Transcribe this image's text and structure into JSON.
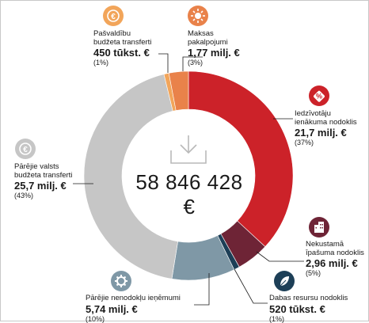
{
  "total": "58 846 428 €",
  "colors": {
    "iedzivotaju": "#cc2229",
    "nekustama": "#6e2436",
    "dabas": "#1d3f57",
    "parejie_nenodoklu": "#7f98a6",
    "parejie_valsts": "#c6c6c6",
    "pasvaldibu": "#f2a55a",
    "maksas": "#e9824a"
  },
  "chart_data": {
    "type": "pie",
    "total_value": "58 846 428 €",
    "slices": [
      {
        "key": "iedzivotaju",
        "name": "Iedzīvotāju ienākuma nodoklis",
        "value_text": "21,7 milj. €",
        "value": 21700000,
        "percent": 37,
        "percent_text": "(37%)",
        "color": "#cc2229",
        "icon": "percent-tag-icon"
      },
      {
        "key": "nekustama",
        "name": "Nekustamā īpašuma nodoklis",
        "value_text": "2,96 milj. €",
        "value": 2960000,
        "percent": 5,
        "percent_text": "(5%)",
        "color": "#6e2436",
        "icon": "buildings-icon"
      },
      {
        "key": "dabas",
        "name": "Dabas resursu nodoklis",
        "value_text": "520 tūkst. €",
        "value": 520000,
        "percent": 1,
        "percent_text": "(1%)",
        "color": "#1d3f57",
        "icon": "leaf-icon"
      },
      {
        "key": "parejie_nenodoklu",
        "name": "Pārējie nenodokļu ieņēmumi",
        "value_text": "5,74 milj. €",
        "value": 5740000,
        "percent": 10,
        "percent_text": "(10%)",
        "color": "#7f98a6",
        "icon": "gear-icon"
      },
      {
        "key": "parejie_valsts",
        "name": "Pārējie valsts budžeta transferti",
        "value_text": "25,7 milj. €",
        "value": 25700000,
        "percent": 43,
        "percent_text": "(43%)",
        "color": "#c6c6c6",
        "icon": "euro-coin-icon"
      },
      {
        "key": "pasvaldibu",
        "name": "Pašvaldību budžeta transferti",
        "value_text": "450 tūkst. €",
        "value": 450000,
        "percent": 1,
        "percent_text": "(1%)",
        "color": "#f2a55a",
        "icon": "euro-coin-icon"
      },
      {
        "key": "maksas",
        "name": "Maksas pakalpojumi",
        "value_text": "1,77 milj. €",
        "value": 1770000,
        "percent": 3,
        "percent_text": "(3%)",
        "color": "#e9824a",
        "icon": "sun-gear-icon"
      }
    ]
  },
  "labels": {
    "iedzivotaju": {
      "l1": "Iedzīvotāju",
      "l2": "ienākuma nodoklis",
      "val": "21,7 milj. €",
      "pct": "(37%)"
    },
    "nekustama": {
      "l1": "Nekustamā",
      "l2": "īpašuma nodoklis",
      "val": "2,96 milj. €",
      "pct": "(5%)"
    },
    "dabas": {
      "l1": "Dabas resursu nodoklis",
      "val": "520 tūkst. €",
      "pct": "(1%)"
    },
    "parejie_nenodoklu": {
      "l1": "Pārējie nenodokļu ieņēmumi",
      "val": "5,74 milj. €",
      "pct": "(10%)"
    },
    "parejie_valsts": {
      "l1": "Pārējie valsts",
      "l2": "budžeta transferti",
      "val": "25,7 milj. €",
      "pct": "(43%)"
    },
    "pasvaldibu": {
      "l1": "Pašvaldību",
      "l2": "budžeta transferti",
      "val": "450 tūkst. €",
      "pct": "(1%)"
    },
    "maksas": {
      "l1": "Maksas",
      "l2": "pakalpojumi",
      "val": "1,77 milj. €",
      "pct": "(3%)"
    }
  }
}
